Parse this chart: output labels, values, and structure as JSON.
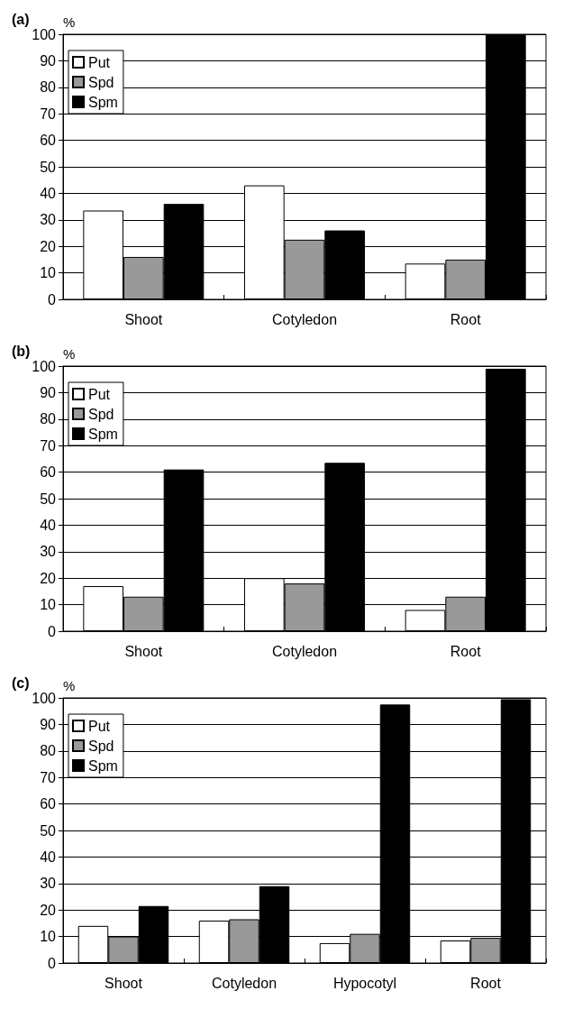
{
  "chart_data": [
    {
      "type": "bar",
      "title": "(a)",
      "ylabel": "%",
      "categories": [
        "Shoot",
        "Cotyledon",
        "Root"
      ],
      "series": [
        {
          "name": "Put",
          "color": "#ffffff",
          "values": [
            33.5,
            43,
            13.5
          ]
        },
        {
          "name": "Spd",
          "color": "#999999",
          "values": [
            16,
            22.5,
            15
          ]
        },
        {
          "name": "Spm",
          "color": "#000000",
          "values": [
            36,
            26,
            100
          ]
        }
      ],
      "ylim": [
        0,
        100
      ],
      "yticks": [
        0,
        10,
        20,
        30,
        40,
        50,
        60,
        70,
        80,
        90,
        100
      ],
      "grid": "y",
      "legend": "top left"
    },
    {
      "type": "bar",
      "title": "(b)",
      "ylabel": "%",
      "categories": [
        "Shoot",
        "Cotyledon",
        "Root"
      ],
      "series": [
        {
          "name": "Put",
          "color": "#ffffff",
          "values": [
            17,
            20,
            8
          ]
        },
        {
          "name": "Spd",
          "color": "#999999",
          "values": [
            13,
            18,
            13
          ]
        },
        {
          "name": "Spm",
          "color": "#000000",
          "values": [
            61,
            63.5,
            99
          ]
        }
      ],
      "ylim": [
        0,
        100
      ],
      "yticks": [
        0,
        10,
        20,
        30,
        40,
        50,
        60,
        70,
        80,
        90,
        100
      ],
      "grid": "y",
      "legend": "top left"
    },
    {
      "type": "bar",
      "title": "(c)",
      "ylabel": "%",
      "categories": [
        "Shoot",
        "Cotyledon",
        "Hypocotyl",
        "Root"
      ],
      "series": [
        {
          "name": "Put",
          "color": "#ffffff",
          "values": [
            14,
            16,
            7.5,
            8.5
          ]
        },
        {
          "name": "Spd",
          "color": "#999999",
          "values": [
            10,
            16.5,
            11,
            9.5
          ]
        },
        {
          "name": "Spm",
          "color": "#000000",
          "values": [
            21.5,
            29,
            97.5,
            99.5
          ]
        }
      ],
      "ylim": [
        0,
        100
      ],
      "yticks": [
        0,
        10,
        20,
        30,
        40,
        50,
        60,
        70,
        80,
        90,
        100
      ],
      "grid": "y",
      "legend": "top left"
    }
  ]
}
